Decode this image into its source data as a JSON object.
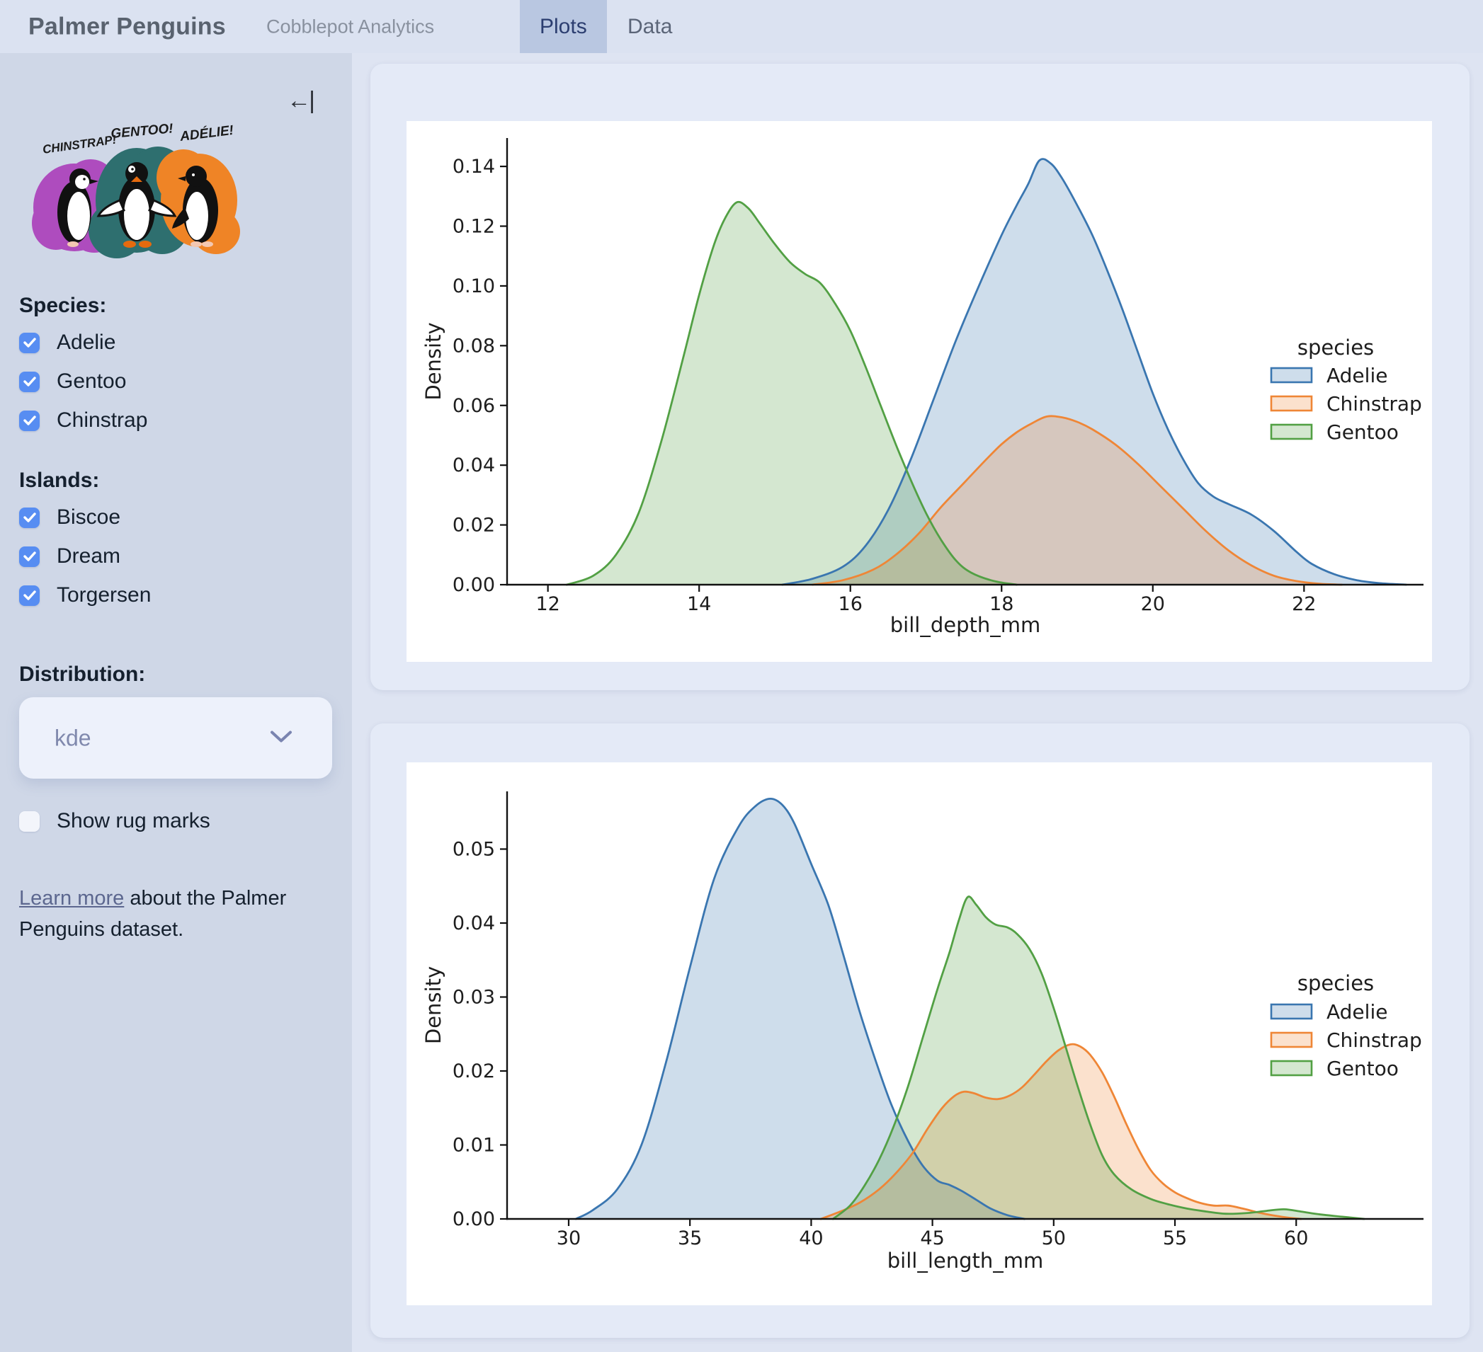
{
  "header": {
    "title": "Palmer Penguins",
    "subtitle": "Cobblepot Analytics",
    "tabs": [
      {
        "label": "Plots",
        "active": true
      },
      {
        "label": "Data",
        "active": false
      }
    ]
  },
  "sidebar": {
    "artwork": {
      "labels": [
        "CHINSTRAP!",
        "GENTOO!",
        "ADÉLIE!"
      ],
      "splash_colors": {
        "chinstrap": "#ae4cbe",
        "gentoo": "#2e6f6f",
        "adelie": "#ef8426"
      }
    },
    "species": {
      "heading": "Species:",
      "options": [
        {
          "label": "Adelie",
          "checked": true
        },
        {
          "label": "Gentoo",
          "checked": true
        },
        {
          "label": "Chinstrap",
          "checked": true
        }
      ]
    },
    "islands": {
      "heading": "Islands:",
      "options": [
        {
          "label": "Biscoe",
          "checked": true
        },
        {
          "label": "Dream",
          "checked": true
        },
        {
          "label": "Torgersen",
          "checked": true
        }
      ]
    },
    "distribution": {
      "heading": "Distribution:",
      "value": "kde"
    },
    "rug": {
      "label": "Show rug marks",
      "checked": false
    },
    "learn_more": {
      "link_text": "Learn more",
      "rest_text": " about the Palmer Penguins dataset."
    },
    "icons": {
      "sidebar_collapse": "←|"
    }
  },
  "accent_colors": {
    "checkbox_blue": "#578df2",
    "active_tab": "#b9c7e1"
  },
  "chart_data": [
    {
      "type": "area",
      "kind": "kde-density",
      "xlabel": "bill_depth_mm",
      "ylabel": "Density",
      "xlim": [
        11.46,
        23.58
      ],
      "ylim": [
        0,
        0.1495
      ],
      "xticks": [
        12,
        14,
        16,
        18,
        20,
        22
      ],
      "yticks": [
        0.0,
        0.02,
        0.04,
        0.06,
        0.08,
        0.1,
        0.12,
        0.14
      ],
      "ytick_decimals": 2,
      "grid": false,
      "legend": {
        "title": "species",
        "position": "right",
        "entries": [
          {
            "label": "Adelie",
            "color": "#3a76b0"
          },
          {
            "label": "Chinstrap",
            "color": "#ef8636"
          },
          {
            "label": "Gentoo",
            "color": "#52a044"
          }
        ]
      },
      "series": [
        {
          "name": "Adelie",
          "color": "#3a76b0",
          "points": [
            [
              15.1,
              0
            ],
            [
              15.5,
              0.002
            ],
            [
              15.9,
              0.006
            ],
            [
              16.2,
              0.013
            ],
            [
              16.5,
              0.025
            ],
            [
              16.8,
              0.042
            ],
            [
              17.1,
              0.062
            ],
            [
              17.4,
              0.082
            ],
            [
              17.7,
              0.1
            ],
            [
              18.0,
              0.117
            ],
            [
              18.2,
              0.127
            ],
            [
              18.35,
              0.134
            ],
            [
              18.5,
              0.142
            ],
            [
              18.65,
              0.141
            ],
            [
              18.8,
              0.136
            ],
            [
              19.0,
              0.127
            ],
            [
              19.2,
              0.117
            ],
            [
              19.4,
              0.105
            ],
            [
              19.6,
              0.092
            ],
            [
              19.8,
              0.078
            ],
            [
              20.0,
              0.064
            ],
            [
              20.2,
              0.052
            ],
            [
              20.4,
              0.042
            ],
            [
              20.6,
              0.034
            ],
            [
              20.8,
              0.0295
            ],
            [
              21.0,
              0.027
            ],
            [
              21.3,
              0.0235
            ],
            [
              21.6,
              0.018
            ],
            [
              21.9,
              0.011
            ],
            [
              22.1,
              0.007
            ],
            [
              22.4,
              0.0035
            ],
            [
              22.7,
              0.0015
            ],
            [
              23.0,
              0.0005
            ],
            [
              23.35,
              0
            ]
          ]
        },
        {
          "name": "Chinstrap",
          "color": "#ef8636",
          "points": [
            [
              15.5,
              0
            ],
            [
              15.9,
              0.0015
            ],
            [
              16.3,
              0.005
            ],
            [
              16.6,
              0.01
            ],
            [
              16.9,
              0.017
            ],
            [
              17.2,
              0.026
            ],
            [
              17.5,
              0.034
            ],
            [
              17.8,
              0.042
            ],
            [
              18.0,
              0.047
            ],
            [
              18.2,
              0.051
            ],
            [
              18.4,
              0.054
            ],
            [
              18.6,
              0.0563
            ],
            [
              18.8,
              0.056
            ],
            [
              19.0,
              0.0545
            ],
            [
              19.2,
              0.052
            ],
            [
              19.5,
              0.047
            ],
            [
              19.8,
              0.0405
            ],
            [
              20.1,
              0.033
            ],
            [
              20.4,
              0.0255
            ],
            [
              20.7,
              0.018
            ],
            [
              21.0,
              0.0115
            ],
            [
              21.3,
              0.0065
            ],
            [
              21.6,
              0.003
            ],
            [
              21.9,
              0.0012
            ],
            [
              22.2,
              0.0003
            ],
            [
              22.5,
              0
            ]
          ]
        },
        {
          "name": "Gentoo",
          "color": "#52a044",
          "points": [
            [
              12.25,
              0
            ],
            [
              12.6,
              0.003
            ],
            [
              12.9,
              0.01
            ],
            [
              13.2,
              0.024
            ],
            [
              13.5,
              0.048
            ],
            [
              13.8,
              0.077
            ],
            [
              14.0,
              0.097
            ],
            [
              14.2,
              0.114
            ],
            [
              14.35,
              0.123
            ],
            [
              14.5,
              0.128
            ],
            [
              14.65,
              0.126
            ],
            [
              14.8,
              0.121
            ],
            [
              15.0,
              0.114
            ],
            [
              15.2,
              0.108
            ],
            [
              15.4,
              0.104
            ],
            [
              15.6,
              0.101
            ],
            [
              15.8,
              0.094
            ],
            [
              16.0,
              0.085
            ],
            [
              16.2,
              0.073
            ],
            [
              16.4,
              0.06
            ],
            [
              16.6,
              0.047
            ],
            [
              16.8,
              0.035
            ],
            [
              17.0,
              0.024
            ],
            [
              17.2,
              0.015
            ],
            [
              17.4,
              0.008
            ],
            [
              17.6,
              0.004
            ],
            [
              17.9,
              0.0012
            ],
            [
              18.2,
              0
            ]
          ]
        }
      ]
    },
    {
      "type": "area",
      "kind": "kde-density",
      "xlabel": "bill_length_mm",
      "ylabel": "Density",
      "xlim": [
        27.46,
        65.25
      ],
      "ylim": [
        0,
        0.0578
      ],
      "xticks": [
        30,
        35,
        40,
        45,
        50,
        55,
        60
      ],
      "yticks": [
        0.0,
        0.01,
        0.02,
        0.03,
        0.04,
        0.05
      ],
      "ytick_decimals": 2,
      "grid": false,
      "legend": {
        "title": "species",
        "position": "right",
        "entries": [
          {
            "label": "Adelie",
            "color": "#3a76b0"
          },
          {
            "label": "Chinstrap",
            "color": "#ef8636"
          },
          {
            "label": "Gentoo",
            "color": "#52a044"
          }
        ]
      },
      "series": [
        {
          "name": "Adelie",
          "color": "#3a76b0",
          "points": [
            [
              30.3,
              0
            ],
            [
              31,
              0.0012
            ],
            [
              32,
              0.004
            ],
            [
              33,
              0.01
            ],
            [
              34,
              0.021
            ],
            [
              35,
              0.034
            ],
            [
              36,
              0.046
            ],
            [
              37,
              0.053
            ],
            [
              37.7,
              0.0558
            ],
            [
              38.3,
              0.0568
            ],
            [
              38.8,
              0.056
            ],
            [
              39.3,
              0.0535
            ],
            [
              40,
              0.048
            ],
            [
              40.7,
              0.0425
            ],
            [
              41.3,
              0.036
            ],
            [
              42,
              0.028
            ],
            [
              42.7,
              0.021
            ],
            [
              43.3,
              0.0155
            ],
            [
              44,
              0.0105
            ],
            [
              44.6,
              0.0072
            ],
            [
              45.2,
              0.0052
            ],
            [
              45.7,
              0.0046
            ],
            [
              46.2,
              0.0038
            ],
            [
              46.8,
              0.0026
            ],
            [
              47.4,
              0.0014
            ],
            [
              48.1,
              0.0005
            ],
            [
              48.8,
              0
            ]
          ]
        },
        {
          "name": "Chinstrap",
          "color": "#ef8636",
          "points": [
            [
              40.4,
              0
            ],
            [
              41.2,
              0.001
            ],
            [
              42,
              0.0022
            ],
            [
              42.8,
              0.004
            ],
            [
              43.5,
              0.0062
            ],
            [
              44.2,
              0.009
            ],
            [
              44.8,
              0.0122
            ],
            [
              45.4,
              0.015
            ],
            [
              45.9,
              0.0166
            ],
            [
              46.3,
              0.0172
            ],
            [
              46.7,
              0.017
            ],
            [
              47.2,
              0.0164
            ],
            [
              47.7,
              0.0162
            ],
            [
              48.2,
              0.0167
            ],
            [
              48.7,
              0.0178
            ],
            [
              49.2,
              0.0195
            ],
            [
              49.7,
              0.0213
            ],
            [
              50.2,
              0.0228
            ],
            [
              50.7,
              0.0236
            ],
            [
              51.1,
              0.0233
            ],
            [
              51.5,
              0.0222
            ],
            [
              52,
              0.0198
            ],
            [
              52.5,
              0.0165
            ],
            [
              53,
              0.0128
            ],
            [
              53.5,
              0.0094
            ],
            [
              54,
              0.0066
            ],
            [
              54.5,
              0.0048
            ],
            [
              55,
              0.0036
            ],
            [
              55.5,
              0.0028
            ],
            [
              56,
              0.0022
            ],
            [
              56.6,
              0.0018
            ],
            [
              57.2,
              0.0018
            ],
            [
              57.8,
              0.0014
            ],
            [
              58.4,
              0.0009
            ],
            [
              59,
              0.0005
            ],
            [
              59.6,
              0.0002
            ],
            [
              60.2,
              0
            ]
          ]
        },
        {
          "name": "Gentoo",
          "color": "#52a044",
          "points": [
            [
              40.9,
              0
            ],
            [
              41.6,
              0.0018
            ],
            [
              42.2,
              0.0045
            ],
            [
              42.8,
              0.008
            ],
            [
              43.4,
              0.0125
            ],
            [
              44,
              0.018
            ],
            [
              44.6,
              0.0245
            ],
            [
              45.2,
              0.031
            ],
            [
              45.7,
              0.036
            ],
            [
              46.1,
              0.0405
            ],
            [
              46.45,
              0.0435
            ],
            [
              46.8,
              0.0425
            ],
            [
              47.2,
              0.0408
            ],
            [
              47.6,
              0.0398
            ],
            [
              48.1,
              0.0394
            ],
            [
              48.5,
              0.0385
            ],
            [
              49,
              0.0365
            ],
            [
              49.5,
              0.0332
            ],
            [
              50,
              0.0285
            ],
            [
              50.5,
              0.0232
            ],
            [
              51,
              0.0178
            ],
            [
              51.5,
              0.0128
            ],
            [
              52,
              0.0086
            ],
            [
              52.5,
              0.006
            ],
            [
              53.2,
              0.004
            ],
            [
              54,
              0.0027
            ],
            [
              54.7,
              0.002
            ],
            [
              55.5,
              0.0014
            ],
            [
              56.3,
              0.001
            ],
            [
              57.1,
              0.0007
            ],
            [
              58,
              0.0008
            ],
            [
              58.8,
              0.0011
            ],
            [
              59.5,
              0.0013
            ],
            [
              60.2,
              0.001
            ],
            [
              61,
              0.0006
            ],
            [
              61.9,
              0.0003
            ],
            [
              62.8,
              0
            ]
          ]
        }
      ]
    }
  ]
}
